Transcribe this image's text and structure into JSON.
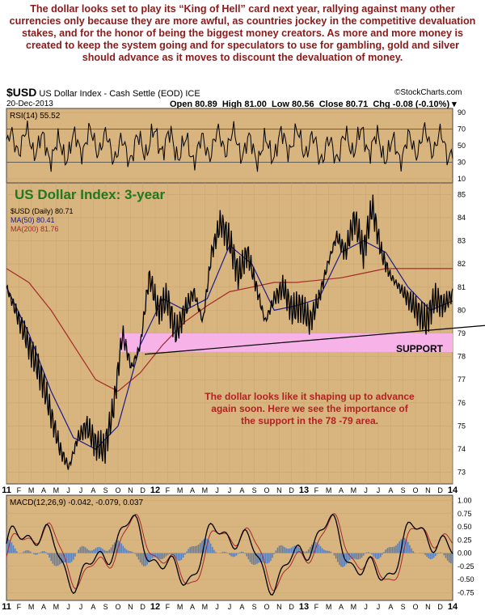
{
  "headline": {
    "text": "The dollar looks set to play its “King of Hell” card next year, rallying against many other currencies only because they are more awful, as countries jockey in the competitive devaluation stakes, and for the honor of being the biggest money creators. As more and more money is created to keep the system going and for speculators to use for gambling, gold and silver should advance as it moves to discount the devaluation of money."
  },
  "header": {
    "ticker": "$USD",
    "name": "US Dollar Index - Cash Settle (EOD)",
    "exchange": "ICE",
    "source": "©StockCharts.com",
    "date": "20-Dec-2013",
    "open": "Open 80.89",
    "high": "High 81.00",
    "low": "Low 80.56",
    "close": "Close 80.71",
    "chg": "Chg -0.08 (-0.10%)"
  },
  "chart_data": [
    {
      "type": "line",
      "panel": "rsi",
      "label": "RSI(14) 55.52",
      "y_ticks": [
        10,
        30,
        50,
        70,
        90
      ],
      "ylim": [
        5,
        95
      ],
      "reference_lines": [
        30,
        70
      ]
    },
    {
      "type": "line",
      "panel": "price",
      "title": "US Dollar Index: 3-year",
      "legend": [
        "$USD (Daily) 80.71",
        "MA(50) 80.41",
        "MA(200) 81.76"
      ],
      "y_ticks": [
        73,
        74,
        75,
        76,
        77,
        78,
        79,
        80,
        81,
        82,
        83,
        84,
        85
      ],
      "ylim": [
        72.5,
        85.5
      ],
      "x_ticks": [
        "11",
        "F",
        "M",
        "A",
        "M",
        "J",
        "J",
        "A",
        "S",
        "O",
        "N",
        "D",
        "12",
        "F",
        "M",
        "A",
        "M",
        "J",
        "J",
        "A",
        "S",
        "O",
        "N",
        "D",
        "13",
        "F",
        "M",
        "A",
        "M",
        "J",
        "J",
        "A",
        "S",
        "O",
        "N",
        "D",
        "14"
      ],
      "series": [
        {
          "name": "$USD (Daily)",
          "color": "#000000",
          "x": [
            0,
            0.03,
            0.06,
            0.08,
            0.1,
            0.12,
            0.14,
            0.16,
            0.18,
            0.2,
            0.22,
            0.24,
            0.26,
            0.28,
            0.3,
            0.32,
            0.34,
            0.36,
            0.38,
            0.4,
            0.42,
            0.44,
            0.46,
            0.48,
            0.5,
            0.52,
            0.54,
            0.56,
            0.58,
            0.6,
            0.62,
            0.64,
            0.66,
            0.68,
            0.7,
            0.72,
            0.74,
            0.76,
            0.78,
            0.8,
            0.82,
            0.84,
            0.86,
            0.88,
            0.9,
            0.92,
            0.94,
            0.96,
            0.98,
            1.0
          ],
          "values": [
            81.0,
            79.5,
            78.0,
            77.0,
            75.5,
            74.0,
            73.2,
            74.5,
            75.0,
            74.2,
            74.0,
            75.8,
            79.0,
            77.5,
            78.5,
            81.5,
            80.0,
            80.5,
            79.0,
            80.0,
            80.8,
            79.5,
            82.5,
            83.8,
            83.0,
            81.5,
            82.5,
            81.0,
            79.5,
            80.5,
            81.0,
            80.0,
            80.2,
            79.5,
            80.5,
            82.0,
            83.2,
            82.5,
            84.0,
            82.5,
            84.5,
            82.5,
            81.5,
            81.0,
            80.5,
            80.0,
            79.5,
            80.5,
            80.2,
            80.7
          ]
        },
        {
          "name": "MA(50)",
          "color": "#1a1a8c",
          "x": [
            0,
            0.05,
            0.1,
            0.15,
            0.2,
            0.25,
            0.3,
            0.35,
            0.4,
            0.45,
            0.5,
            0.55,
            0.6,
            0.65,
            0.7,
            0.75,
            0.8,
            0.85,
            0.9,
            0.95,
            1.0
          ],
          "values": [
            81.0,
            79.0,
            76.5,
            74.5,
            74.0,
            75.0,
            78.5,
            80.5,
            80.0,
            80.5,
            82.8,
            82.0,
            80.0,
            80.2,
            80.5,
            82.5,
            83.0,
            82.5,
            81.0,
            80.0,
            80.4
          ]
        },
        {
          "name": "MA(200)",
          "color": "#a52a2a",
          "x": [
            0,
            0.05,
            0.1,
            0.15,
            0.2,
            0.25,
            0.3,
            0.35,
            0.4,
            0.45,
            0.5,
            0.55,
            0.6,
            0.65,
            0.7,
            0.75,
            0.8,
            0.85,
            0.9,
            0.95,
            1.0
          ],
          "values": [
            81.8,
            81.2,
            80.0,
            78.5,
            77.0,
            76.5,
            77.3,
            78.5,
            79.5,
            80.2,
            80.8,
            81.0,
            81.2,
            81.2,
            81.3,
            81.4,
            81.6,
            81.8,
            81.8,
            81.8,
            81.8
          ]
        }
      ],
      "support_zone": [
        78.2,
        79.0
      ],
      "support_label": "SUPPORT",
      "trendline": {
        "from": [
          0.31,
          78.1
        ],
        "to": [
          1.0,
          79.2
        ]
      },
      "annotation": "The dollar looks like it shaping up to advance again soon. Here we see the importance of the support in the 78 -79 area."
    },
    {
      "type": "line",
      "panel": "macd",
      "label": "MACD(12,26,9) -0.042, -0.079, 0.037",
      "y_ticks": [
        1.0,
        0.75,
        0.5,
        0.25,
        0.0,
        -0.25,
        -0.5,
        -0.75
      ],
      "ylim": [
        -0.9,
        1.1
      ],
      "x_ticks": [
        "11",
        "F",
        "M",
        "A",
        "M",
        "J",
        "J",
        "A",
        "S",
        "O",
        "N",
        "D",
        "12",
        "F",
        "M",
        "A",
        "M",
        "J",
        "J",
        "A",
        "S",
        "O",
        "N",
        "D",
        "13",
        "F",
        "M",
        "A",
        "M",
        "J",
        "J",
        "A",
        "S",
        "O",
        "N",
        "D",
        "14"
      ]
    }
  ],
  "colors": {
    "panel_bg": "#d8b47e",
    "headline": "#8b1a1a",
    "title": "#1e7a1e",
    "support": "#f7b2e8",
    "annotation": "#b22222"
  }
}
